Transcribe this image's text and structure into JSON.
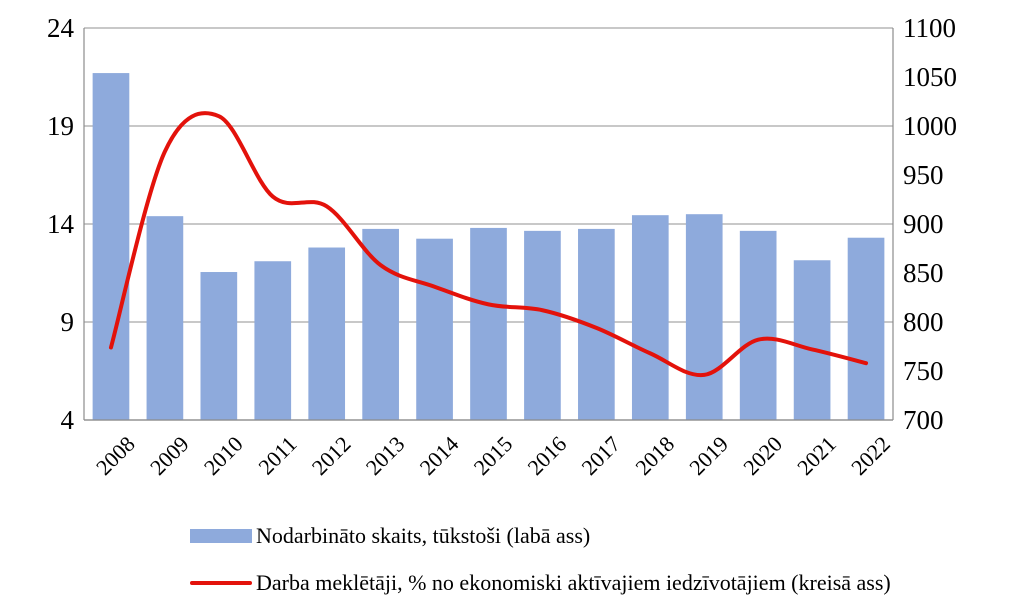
{
  "chart_data": {
    "type": "bar+line",
    "categories": [
      "2008",
      "2009",
      "2010",
      "2011",
      "2012",
      "2013",
      "2014",
      "2015",
      "2016",
      "2017",
      "2018",
      "2019",
      "2020",
      "2021",
      "2022"
    ],
    "series": [
      {
        "name": "Nodarbināto skaits, tūkstoši (labā ass)",
        "type": "bar",
        "axis": "right",
        "color": "#8eaadc",
        "values": [
          1054,
          908,
          851,
          862,
          876,
          895,
          885,
          896,
          893,
          895,
          909,
          910,
          893,
          863,
          886
        ]
      },
      {
        "name": "Darba meklētāji, % no ekonomiski aktīvajiem iedzīvotājiem (kreisā ass)",
        "type": "line",
        "axis": "left",
        "color": "#e3120b",
        "values": [
          7.7,
          17.7,
          19.5,
          15.4,
          14.9,
          11.9,
          10.8,
          9.9,
          9.6,
          8.7,
          7.4,
          6.3,
          8.1,
          7.6,
          6.9
        ]
      }
    ],
    "y_left": {
      "ylim": [
        4,
        24
      ],
      "ticks": [
        "4",
        "9",
        "14",
        "19",
        "24"
      ]
    },
    "y_right": {
      "ylim": [
        700,
        1100
      ],
      "ticks": [
        "700",
        "750",
        "800",
        "850",
        "900",
        "950",
        "1000",
        "1050",
        "1100"
      ]
    },
    "grid": true,
    "legend_position": "bottom"
  }
}
